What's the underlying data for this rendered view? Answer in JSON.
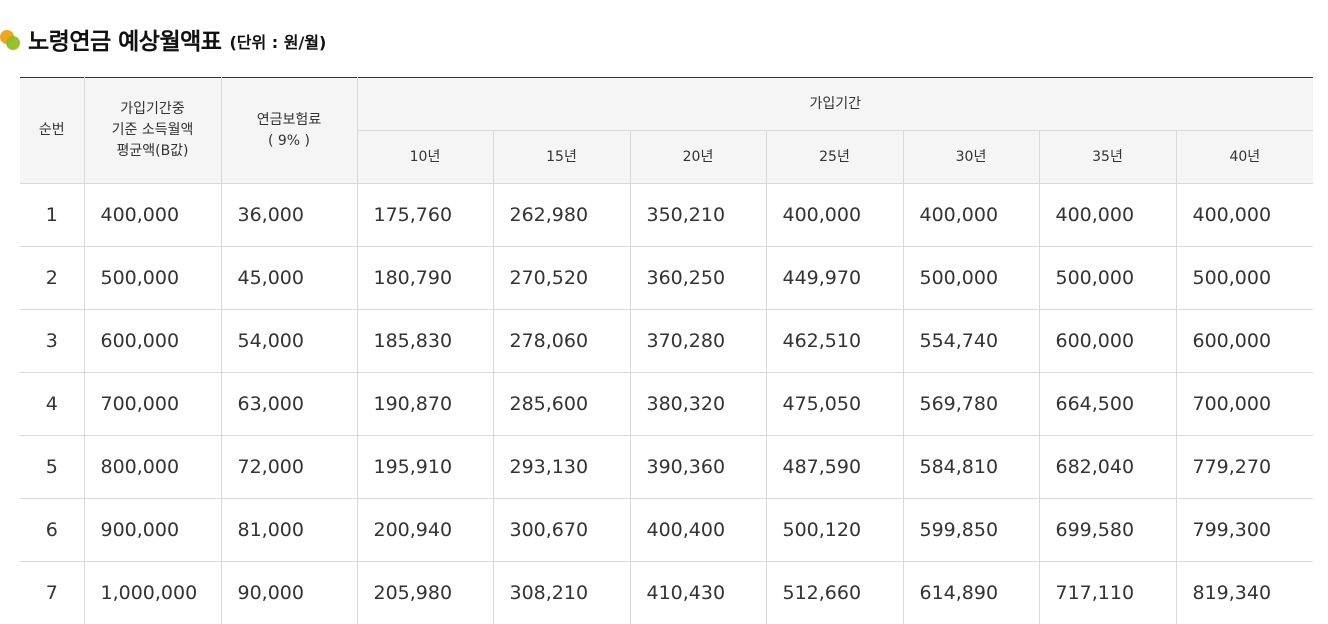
{
  "title": {
    "main": "노령연금 예상월액표",
    "unit": "(단위 : 원/월)"
  },
  "table": {
    "headers": {
      "seq": "순번",
      "income_line1": "가입기간중",
      "income_line2": "기준 소득월액",
      "income_line3": "평균액(B값)",
      "premium_line1": "연금보험료",
      "premium_line2": "( 9% )",
      "period_group": "가입기간",
      "periods": [
        "10년",
        "15년",
        "20년",
        "25년",
        "30년",
        "35년",
        "40년"
      ]
    },
    "rows": [
      {
        "seq": "1",
        "income": "400,000",
        "premium": "36,000",
        "values": [
          "175,760",
          "262,980",
          "350,210",
          "400,000",
          "400,000",
          "400,000",
          "400,000"
        ]
      },
      {
        "seq": "2",
        "income": "500,000",
        "premium": "45,000",
        "values": [
          "180,790",
          "270,520",
          "360,250",
          "449,970",
          "500,000",
          "500,000",
          "500,000"
        ]
      },
      {
        "seq": "3",
        "income": "600,000",
        "premium": "54,000",
        "values": [
          "185,830",
          "278,060",
          "370,280",
          "462,510",
          "554,740",
          "600,000",
          "600,000"
        ]
      },
      {
        "seq": "4",
        "income": "700,000",
        "premium": "63,000",
        "values": [
          "190,870",
          "285,600",
          "380,320",
          "475,050",
          "569,780",
          "664,500",
          "700,000"
        ]
      },
      {
        "seq": "5",
        "income": "800,000",
        "premium": "72,000",
        "values": [
          "195,910",
          "293,130",
          "390,360",
          "487,590",
          "584,810",
          "682,040",
          "779,270"
        ]
      },
      {
        "seq": "6",
        "income": "900,000",
        "premium": "81,000",
        "values": [
          "200,940",
          "300,670",
          "400,400",
          "500,120",
          "599,850",
          "699,580",
          "799,300"
        ]
      },
      {
        "seq": "7",
        "income": "1,000,000",
        "premium": "90,000",
        "values": [
          "205,980",
          "308,210",
          "410,430",
          "512,660",
          "614,890",
          "717,110",
          "819,340"
        ]
      }
    ]
  },
  "colors": {
    "bullet_orange": "#f2a51a",
    "bullet_green": "#8cbd1f",
    "header_bg": "#f5f5f5",
    "border": "#d9d9d9",
    "top_rule": "#333333"
  }
}
